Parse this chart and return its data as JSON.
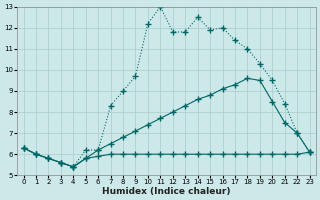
{
  "xlabel": "Humidex (Indice chaleur)",
  "bg_color": "#cce8e8",
  "grid_color": "#aacccc",
  "line_color": "#006666",
  "xlim": [
    -0.5,
    23.5
  ],
  "ylim": [
    5,
    13
  ],
  "yticks": [
    5,
    6,
    7,
    8,
    9,
    10,
    11,
    12,
    13
  ],
  "xticks": [
    0,
    1,
    2,
    3,
    4,
    5,
    6,
    7,
    8,
    9,
    10,
    11,
    12,
    13,
    14,
    15,
    16,
    17,
    18,
    19,
    20,
    21,
    22,
    23
  ],
  "line1_x": [
    0,
    1,
    2,
    3,
    4,
    5,
    6,
    7,
    8,
    9,
    10,
    11,
    12,
    13,
    14,
    15,
    16,
    17,
    18,
    19,
    20,
    21,
    22,
    23
  ],
  "line1_y": [
    6.3,
    6.0,
    5.8,
    5.6,
    5.4,
    6.2,
    6.2,
    8.3,
    9.0,
    9.7,
    12.2,
    13.0,
    11.8,
    11.8,
    12.5,
    11.9,
    12.0,
    11.4,
    11.0,
    10.3,
    9.5,
    8.4,
    7.0,
    6.1
  ],
  "line2_x": [
    0,
    1,
    2,
    3,
    4,
    5,
    6,
    7,
    8,
    9,
    10,
    11,
    12,
    13,
    14,
    15,
    16,
    17,
    18,
    19,
    20,
    21,
    22,
    23
  ],
  "line2_y": [
    6.3,
    6.0,
    5.8,
    5.6,
    5.4,
    5.8,
    6.2,
    6.5,
    6.8,
    7.1,
    7.4,
    7.7,
    8.0,
    8.3,
    8.6,
    8.8,
    9.1,
    9.3,
    9.6,
    9.5,
    8.5,
    7.5,
    7.0,
    6.1
  ],
  "line3_x": [
    0,
    1,
    2,
    3,
    4,
    5,
    6,
    7,
    8,
    9,
    10,
    11,
    12,
    13,
    14,
    15,
    16,
    17,
    18,
    19,
    20,
    21,
    22,
    23
  ],
  "line3_y": [
    6.3,
    6.0,
    5.8,
    5.6,
    5.4,
    5.8,
    5.9,
    6.0,
    6.0,
    6.0,
    6.0,
    6.0,
    6.0,
    6.0,
    6.0,
    6.0,
    6.0,
    6.0,
    6.0,
    6.0,
    6.0,
    6.0,
    6.0,
    6.1
  ]
}
